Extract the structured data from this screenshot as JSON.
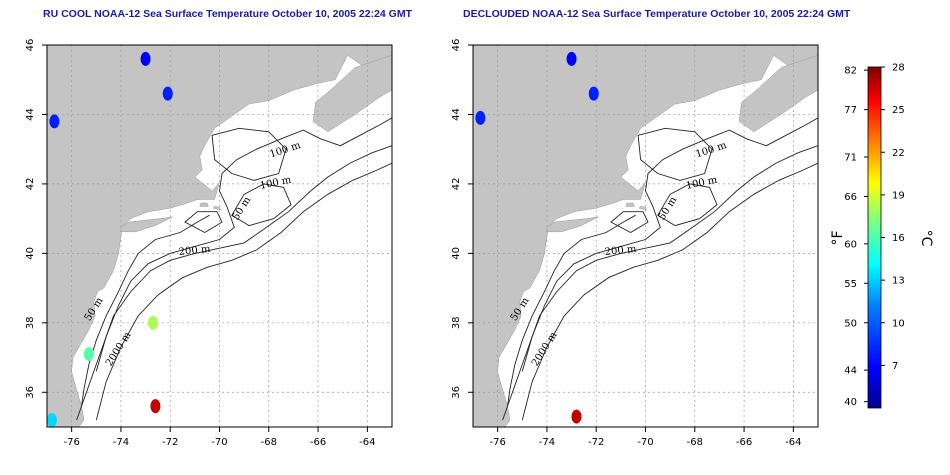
{
  "panels": [
    {
      "title": "RU COOL NOAA-12 Sea Surface Temperature October 10, 2005 22:24 GMT",
      "contour_labels": [
        "100 m",
        "100 m",
        "50 m",
        "200 m",
        "50 m",
        "2000 m"
      ],
      "sst_patches": [
        {
          "lon": -76.7,
          "lat": 43.8,
          "temp_c": 8
        },
        {
          "lon": -73.0,
          "lat": 45.6,
          "temp_c": 7
        },
        {
          "lon": -72.1,
          "lat": 44.6,
          "temp_c": 8
        },
        {
          "lon": -72.7,
          "lat": 38.0,
          "temp_c": 18
        },
        {
          "lon": -75.3,
          "lat": 37.1,
          "temp_c": 16
        },
        {
          "lon": -76.8,
          "lat": 35.2,
          "temp_c": 13
        },
        {
          "lon": -72.6,
          "lat": 35.6,
          "temp_c": 27
        }
      ]
    },
    {
      "title": "DECLOUDED NOAA-12 Sea Surface Temperature October 10, 2005 22:24 GMT",
      "contour_labels": [
        "100 m",
        "100 m",
        "50 m",
        "200 m",
        "50 m",
        "2000 m"
      ],
      "sst_patches": [
        {
          "lon": -76.7,
          "lat": 43.9,
          "temp_c": 8
        },
        {
          "lon": -73.0,
          "lat": 45.6,
          "temp_c": 7
        },
        {
          "lon": -72.1,
          "lat": 44.6,
          "temp_c": 8
        },
        {
          "lon": -72.8,
          "lat": 35.3,
          "temp_c": 27
        }
      ]
    }
  ],
  "axes": {
    "lon_range": [
      -77,
      -63
    ],
    "lat_range": [
      35,
      46
    ],
    "lon_ticks": [
      "-76",
      "-74",
      "-72",
      "-70",
      "-68",
      "-66",
      "-64"
    ],
    "lat_ticks": [
      "36",
      "38",
      "40",
      "42",
      "44",
      "46"
    ],
    "grid": "dotted"
  },
  "colorbar": {
    "celsius_ticks": [
      "7",
      "10",
      "13",
      "16",
      "19",
      "22",
      "25",
      "28"
    ],
    "fahrenheit_ticks": [
      "40",
      "44",
      "50",
      "55",
      "60",
      "66",
      "71",
      "77",
      "82"
    ],
    "celsius_label": "°C",
    "fahrenheit_label": "°F",
    "range_c": [
      4,
      28
    ]
  },
  "colors": {
    "land": "#c4c4c4",
    "ocean": "#ffffff",
    "title": "#1a1aa8",
    "contour": "#222222"
  }
}
